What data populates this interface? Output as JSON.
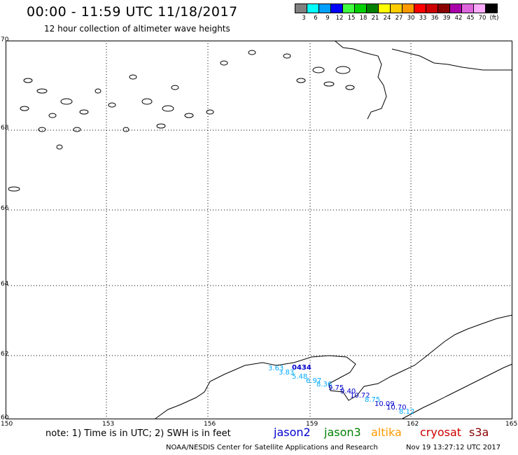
{
  "title": "00:00 - 11:59 UTC 11/18/2017",
  "subtitle": "12 hour collection of altimeter wave heights",
  "legend": {
    "colors": [
      "#808080",
      "#00ffff",
      "#00a0ff",
      "#0000ff",
      "#40ff40",
      "#00d000",
      "#008000",
      "#ffff00",
      "#ffcc00",
      "#ff9900",
      "#ff0000",
      "#cc0000",
      "#880000",
      "#aa00aa",
      "#dd66dd",
      "#ffaaff",
      "#000000"
    ],
    "labels": [
      "3",
      "6",
      "9",
      "12",
      "15",
      "18",
      "21",
      "24",
      "27",
      "30",
      "33",
      "36",
      "39",
      "42",
      "45",
      "70",
      "(ft)"
    ]
  },
  "lat_labels": [
    "70",
    "68",
    "66",
    "64",
    "62",
    "60"
  ],
  "lon_labels": [
    "150",
    "153",
    "156",
    "159",
    "162",
    "165"
  ],
  "note": "note: 1) Time is in UTC; 2) SWH is in feet",
  "satellites": [
    {
      "name": "jason2",
      "color": "#0000cc"
    },
    {
      "name": "jason3",
      "color": "#008000"
    },
    {
      "name": "altika",
      "color": "#ff9900"
    },
    {
      "name": "cryosat",
      "color": "#cc0000"
    },
    {
      "name": "s3a",
      "color": "#880000"
    }
  ],
  "footer_left": "NOAA/NESDIS Center for Satellite Applications and Research",
  "footer_right": "Nov 19 13:27:12 UTC 2017",
  "observations": [
    {
      "text": "3.63",
      "color": "#00aaff"
    },
    {
      "text": "0434",
      "color": "#0000cc"
    },
    {
      "text": "3.83",
      "color": "#00aaff"
    },
    {
      "text": "5.48",
      "color": "#00aaff"
    },
    {
      "text": "6.97",
      "color": "#00aaff"
    },
    {
      "text": "8.36",
      "color": "#00aaff"
    },
    {
      "text": "9.75",
      "color": "#0000cc"
    },
    {
      "text": "9.40",
      "color": "#0000cc"
    },
    {
      "text": "10.72",
      "color": "#0000cc"
    },
    {
      "text": "8.75",
      "color": "#00aaff"
    },
    {
      "text": "10.09",
      "color": "#0000cc"
    },
    {
      "text": "10.70",
      "color": "#0000cc"
    },
    {
      "text": "8.12",
      "color": "#00aaff"
    }
  ]
}
